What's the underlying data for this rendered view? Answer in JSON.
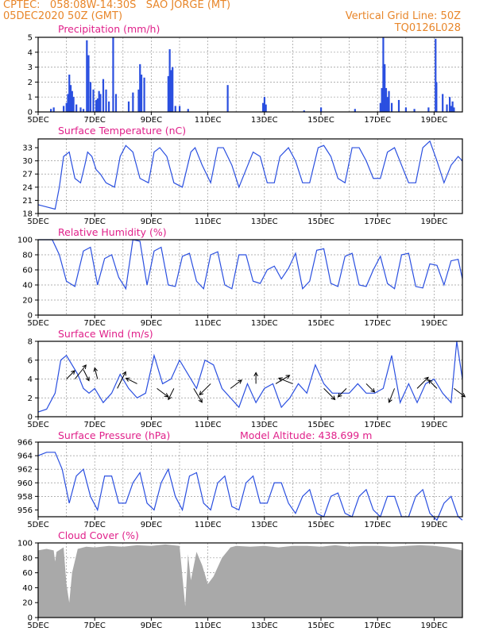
{
  "header": {
    "line1_left": "CPTEC:   058:08W-14:30S   SAO JORGE (MT)",
    "line2_left": "05DEC2020 50Z (GMT)",
    "line1_right": "Vertical Grid Line: 50Z",
    "line2_right": "TQ0126L028"
  },
  "colors": {
    "line": "#2a4fe0",
    "cloud": "#a9a9a9",
    "grid": "#999999",
    "title": "#e0208a",
    "header": "#e8862a"
  },
  "chart_data": [
    {
      "type": "bar",
      "title": "Precipitation (mm/h)",
      "ylim": [
        0,
        5
      ],
      "yticks": [
        "0",
        "1",
        "2",
        "3",
        "4",
        "5"
      ],
      "xticks": [
        "5DEC",
        "7DEC",
        "9DEC",
        "11DEC",
        "13DEC",
        "15DEC",
        "17DEC",
        "19DEC"
      ],
      "x_range_days": [
        0,
        15
      ],
      "bars": [
        [
          0.45,
          0.2
        ],
        [
          0.55,
          0.3
        ],
        [
          0.9,
          0.4
        ],
        [
          1.0,
          0.6
        ],
        [
          1.05,
          1.2
        ],
        [
          1.1,
          2.5
        ],
        [
          1.15,
          1.8
        ],
        [
          1.2,
          1.4
        ],
        [
          1.25,
          1.0
        ],
        [
          1.35,
          0.5
        ],
        [
          1.5,
          0.3
        ],
        [
          1.6,
          0.2
        ],
        [
          1.72,
          4.8
        ],
        [
          1.78,
          3.8
        ],
        [
          1.85,
          2.0
        ],
        [
          1.95,
          1.5
        ],
        [
          2.05,
          0.8
        ],
        [
          2.1,
          0.9
        ],
        [
          2.15,
          1.4
        ],
        [
          2.2,
          1.2
        ],
        [
          2.3,
          2.2
        ],
        [
          2.4,
          1.5
        ],
        [
          2.5,
          0.7
        ],
        [
          2.65,
          5.0
        ],
        [
          2.75,
          1.2
        ],
        [
          3.2,
          0.7
        ],
        [
          3.35,
          1.3
        ],
        [
          3.55,
          1.5
        ],
        [
          3.6,
          3.2
        ],
        [
          3.65,
          2.5
        ],
        [
          3.75,
          2.3
        ],
        [
          4.6,
          2.4
        ],
        [
          4.65,
          4.2
        ],
        [
          4.7,
          2.8
        ],
        [
          4.75,
          3.0
        ],
        [
          4.85,
          0.4
        ],
        [
          5.0,
          0.4
        ],
        [
          5.3,
          0.2
        ],
        [
          6.7,
          1.8
        ],
        [
          7.95,
          0.6
        ],
        [
          8.0,
          1.0
        ],
        [
          8.05,
          0.5
        ],
        [
          9.4,
          0.1
        ],
        [
          10.0,
          0.3
        ],
        [
          11.2,
          0.2
        ],
        [
          12.1,
          0.6
        ],
        [
          12.15,
          1.6
        ],
        [
          12.2,
          5.0
        ],
        [
          12.25,
          3.2
        ],
        [
          12.3,
          1.6
        ],
        [
          12.35,
          1.0
        ],
        [
          12.4,
          1.4
        ],
        [
          12.5,
          0.6
        ],
        [
          12.75,
          0.8
        ],
        [
          13.0,
          0.3
        ],
        [
          13.3,
          0.2
        ],
        [
          13.8,
          0.3
        ],
        [
          14.05,
          4.9
        ],
        [
          14.08,
          2.0
        ],
        [
          14.3,
          1.2
        ],
        [
          14.45,
          0.5
        ],
        [
          14.55,
          1.0
        ],
        [
          14.6,
          0.4
        ],
        [
          14.65,
          0.7
        ],
        [
          14.7,
          0.3
        ]
      ]
    },
    {
      "type": "line",
      "title": "Surface Temperature (nC)",
      "ylim": [
        18,
        35
      ],
      "yticks": [
        "18",
        "21",
        "24",
        "27",
        "30",
        "33"
      ],
      "xticks": [
        "5DEC",
        "7DEC",
        "9DEC",
        "11DEC",
        "13DEC",
        "15DEC",
        "17DEC",
        "19DEC"
      ],
      "x_range_days": [
        0,
        15
      ],
      "x": [
        0,
        0.3,
        0.6,
        0.75,
        0.9,
        1.1,
        1.3,
        1.5,
        1.65,
        1.75,
        1.9,
        2.05,
        2.2,
        2.4,
        2.7,
        2.9,
        3.1,
        3.35,
        3.6,
        3.9,
        4.1,
        4.3,
        4.55,
        4.8,
        5.1,
        5.4,
        5.55,
        5.8,
        6.1,
        6.35,
        6.55,
        6.85,
        7.1,
        7.35,
        7.6,
        7.85,
        8.1,
        8.35,
        8.55,
        8.85,
        9.1,
        9.35,
        9.6,
        9.9,
        10.1,
        10.35,
        10.6,
        10.85,
        11.1,
        11.35,
        11.6,
        11.85,
        12.1,
        12.35,
        12.6,
        12.85,
        13.1,
        13.35,
        13.6,
        13.85,
        14.1,
        14.35,
        14.6,
        14.85,
        15.0
      ],
      "values": [
        20,
        19.5,
        19,
        24,
        31,
        32,
        26,
        25,
        29,
        32,
        31,
        28,
        27,
        25,
        24,
        31,
        33.5,
        32,
        26,
        25,
        32,
        33,
        31,
        25,
        24,
        32,
        33,
        29,
        25,
        33,
        33,
        29,
        24,
        28,
        32,
        31,
        25,
        25,
        31,
        33,
        30,
        25,
        25,
        33,
        33.5,
        31,
        26,
        25,
        33,
        33,
        30,
        26,
        26,
        32,
        33,
        29,
        25,
        25,
        33,
        34.5,
        30,
        25,
        29,
        31,
        30
      ]
    },
    {
      "type": "line",
      "title": "Relative Humidity (%)",
      "ylim": [
        0,
        100
      ],
      "yticks": [
        "0",
        "20",
        "40",
        "60",
        "80",
        "100"
      ],
      "xticks": [
        "5DEC",
        "7DEC",
        "9DEC",
        "11DEC",
        "13DEC",
        "15DEC",
        "17DEC",
        "19DEC"
      ],
      "x_range_days": [
        0,
        15
      ],
      "x": [
        0,
        0.25,
        0.5,
        0.75,
        1.0,
        1.3,
        1.6,
        1.85,
        2.1,
        2.35,
        2.6,
        2.85,
        3.1,
        3.35,
        3.6,
        3.85,
        4.1,
        4.35,
        4.6,
        4.85,
        5.1,
        5.35,
        5.6,
        5.85,
        6.1,
        6.35,
        6.6,
        6.85,
        7.1,
        7.35,
        7.6,
        7.85,
        8.1,
        8.35,
        8.6,
        8.85,
        9.1,
        9.35,
        9.6,
        9.85,
        10.1,
        10.35,
        10.6,
        10.85,
        11.1,
        11.35,
        11.6,
        11.85,
        12.1,
        12.35,
        12.6,
        12.85,
        13.1,
        13.35,
        13.6,
        13.85,
        14.1,
        14.35,
        14.6,
        14.85,
        15.0
      ],
      "values": [
        100,
        100,
        100,
        80,
        45,
        38,
        85,
        90,
        40,
        75,
        80,
        50,
        35,
        100,
        98,
        40,
        85,
        90,
        40,
        38,
        78,
        82,
        45,
        35,
        80,
        84,
        40,
        35,
        80,
        80,
        45,
        42,
        60,
        65,
        48,
        62,
        82,
        35,
        45,
        86,
        88,
        42,
        38,
        78,
        82,
        40,
        38,
        60,
        78,
        42,
        35,
        80,
        82,
        38,
        36,
        68,
        66,
        40,
        72,
        74,
        48
      ]
    },
    {
      "type": "line",
      "title": "Surface Wind (m/s)",
      "ylim": [
        0,
        8
      ],
      "yticks": [
        "0",
        "2",
        "4",
        "6",
        "8"
      ],
      "xticks": [
        "5DEC",
        "7DEC",
        "9DEC",
        "11DEC",
        "13DEC",
        "15DEC",
        "17DEC",
        "19DEC"
      ],
      "x_range_days": [
        0,
        15
      ],
      "x": [
        0,
        0.3,
        0.6,
        0.8,
        1.0,
        1.2,
        1.4,
        1.6,
        1.8,
        2.0,
        2.3,
        2.6,
        2.9,
        3.2,
        3.5,
        3.8,
        4.1,
        4.4,
        4.7,
        5.0,
        5.3,
        5.6,
        5.9,
        6.2,
        6.5,
        6.8,
        7.1,
        7.4,
        7.7,
        8.0,
        8.3,
        8.6,
        8.9,
        9.2,
        9.5,
        9.8,
        10.1,
        10.4,
        10.7,
        11.0,
        11.3,
        11.6,
        11.9,
        12.2,
        12.5,
        12.8,
        13.1,
        13.4,
        13.7,
        14.0,
        14.3,
        14.6,
        14.8,
        15.0
      ],
      "values": [
        0.5,
        0.8,
        2.5,
        6.0,
        6.5,
        5.5,
        4.5,
        3.0,
        2.5,
        3.0,
        1.5,
        2.5,
        4.5,
        3.0,
        2.0,
        2.5,
        6.5,
        3.5,
        4.0,
        6.0,
        4.5,
        3.0,
        6.0,
        5.5,
        3.0,
        2.0,
        1.0,
        3.5,
        1.5,
        3.0,
        3.5,
        1.0,
        2.0,
        3.5,
        2.5,
        5.5,
        3.5,
        2.5,
        2.5,
        2.5,
        3.5,
        2.5,
        2.5,
        3.0,
        6.5,
        1.5,
        3.5,
        1.5,
        3.5,
        4.0,
        2.5,
        1.5,
        8.0,
        4.0
      ]
    },
    {
      "type": "line",
      "title": "Surface Pressure (hPa)",
      "annotation": "Model Altitude: 438.699 m",
      "ylim": [
        955,
        966
      ],
      "yticks": [
        "956",
        "958",
        "960",
        "962",
        "964",
        "966"
      ],
      "xticks": [
        "5DEC",
        "7DEC",
        "9DEC",
        "11DEC",
        "13DEC",
        "15DEC",
        "17DEC",
        "19DEC"
      ],
      "x_range_days": [
        0,
        15
      ],
      "x": [
        0,
        0.3,
        0.6,
        0.85,
        1.1,
        1.35,
        1.6,
        1.85,
        2.1,
        2.35,
        2.6,
        2.85,
        3.1,
        3.35,
        3.6,
        3.85,
        4.1,
        4.35,
        4.6,
        4.85,
        5.1,
        5.35,
        5.6,
        5.85,
        6.1,
        6.35,
        6.6,
        6.85,
        7.1,
        7.35,
        7.6,
        7.85,
        8.1,
        8.35,
        8.6,
        8.85,
        9.1,
        9.35,
        9.6,
        9.85,
        10.1,
        10.35,
        10.6,
        10.85,
        11.1,
        11.35,
        11.6,
        11.85,
        12.1,
        12.35,
        12.6,
        12.85,
        13.1,
        13.35,
        13.6,
        13.85,
        14.1,
        14.35,
        14.6,
        14.85,
        15.0
      ],
      "values": [
        964,
        964.5,
        964.5,
        962,
        957,
        961,
        962,
        958,
        956,
        961,
        961,
        957,
        957,
        960,
        961.5,
        957,
        956,
        960,
        962,
        958,
        956,
        961,
        961.5,
        957,
        956,
        960,
        961,
        956.5,
        956,
        960,
        961,
        957,
        957,
        960,
        960,
        957,
        955.5,
        958,
        959,
        955.5,
        955,
        958,
        958.5,
        955.5,
        955,
        958,
        959,
        956,
        955,
        958,
        958,
        955,
        955,
        958,
        959,
        955.5,
        954.5,
        957,
        958,
        955,
        954.5
      ]
    },
    {
      "type": "area",
      "title": "Cloud Cover (%)",
      "ylim": [
        0,
        100
      ],
      "yticks": [
        "0",
        "20",
        "40",
        "60",
        "80",
        "100"
      ],
      "xticks": [
        "5DEC",
        "7DEC",
        "9DEC",
        "11DEC",
        "13DEC",
        "15DEC",
        "17DEC",
        "19DEC"
      ],
      "x_range_days": [
        0,
        15
      ],
      "x": [
        0,
        0.3,
        0.55,
        0.6,
        0.65,
        0.9,
        1.0,
        1.1,
        1.2,
        1.4,
        1.7,
        2.0,
        2.5,
        3.0,
        3.5,
        4.0,
        4.5,
        5.0,
        5.2,
        5.3,
        5.4,
        5.6,
        5.8,
        6.0,
        6.2,
        6.5,
        6.8,
        7.0,
        7.5,
        8.0,
        8.5,
        9.0,
        9.5,
        10.0,
        10.5,
        11.0,
        11.5,
        12.0,
        12.5,
        13.0,
        13.5,
        14.0,
        14.5,
        15.0
      ],
      "values": [
        90,
        92,
        90,
        75,
        88,
        94,
        45,
        20,
        60,
        92,
        95,
        94,
        96,
        95,
        97,
        96,
        98,
        96,
        15,
        85,
        50,
        88,
        70,
        45,
        55,
        80,
        94,
        96,
        95,
        96,
        94,
        96,
        96,
        95,
        97,
        95,
        96,
        96,
        95,
        96,
        97,
        96,
        94,
        90
      ],
      "wind_vectors_note": "arrows overlaid on wind panel"
    }
  ]
}
